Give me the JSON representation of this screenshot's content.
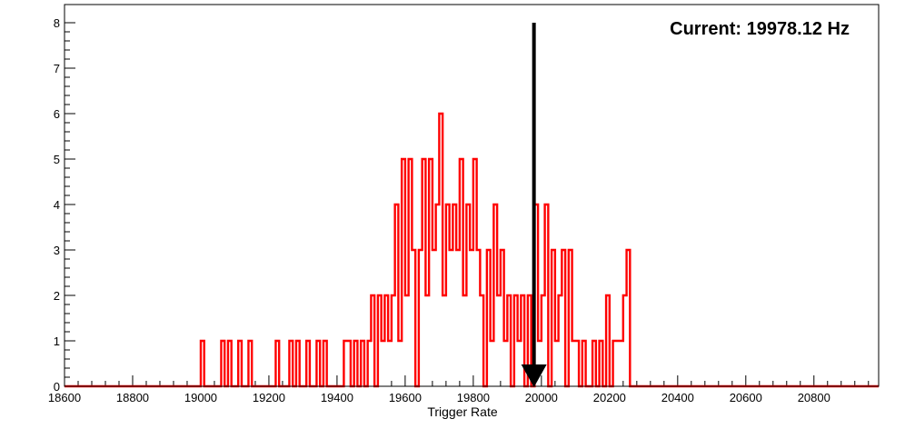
{
  "chart_data": {
    "type": "line",
    "title": "",
    "xlabel": "Trigger Rate",
    "ylabel": "",
    "xlim": [
      18600,
      20990
    ],
    "ylim": [
      0,
      8.4
    ],
    "grid": false,
    "x_ticks": [
      18600,
      18800,
      19000,
      19200,
      19400,
      19600,
      19800,
      20000,
      20200,
      20400,
      20600,
      20800
    ],
    "y_ticks": [
      0,
      1,
      2,
      3,
      4,
      5,
      6,
      7,
      8
    ],
    "series": [
      {
        "bin_width": 10,
        "color": "#ff0000",
        "points": [
          [
            18600,
            0
          ],
          [
            19000,
            1
          ],
          [
            19010,
            0
          ],
          [
            19060,
            1
          ],
          [
            19070,
            0
          ],
          [
            19080,
            1
          ],
          [
            19090,
            0
          ],
          [
            19110,
            1
          ],
          [
            19120,
            0
          ],
          [
            19140,
            1
          ],
          [
            19150,
            0
          ],
          [
            19220,
            1
          ],
          [
            19230,
            0
          ],
          [
            19260,
            1
          ],
          [
            19270,
            0
          ],
          [
            19280,
            1
          ],
          [
            19290,
            0
          ],
          [
            19310,
            1
          ],
          [
            19320,
            0
          ],
          [
            19340,
            1
          ],
          [
            19350,
            0
          ],
          [
            19360,
            1
          ],
          [
            19370,
            0
          ],
          [
            19420,
            1
          ],
          [
            19440,
            0
          ],
          [
            19450,
            1
          ],
          [
            19460,
            0
          ],
          [
            19470,
            1
          ],
          [
            19480,
            0
          ],
          [
            19490,
            1
          ],
          [
            19500,
            2
          ],
          [
            19510,
            0
          ],
          [
            19520,
            2
          ],
          [
            19530,
            1
          ],
          [
            19540,
            2
          ],
          [
            19550,
            1
          ],
          [
            19560,
            2
          ],
          [
            19570,
            4
          ],
          [
            19580,
            1
          ],
          [
            19590,
            5
          ],
          [
            19600,
            2
          ],
          [
            19610,
            5
          ],
          [
            19620,
            3
          ],
          [
            19630,
            0
          ],
          [
            19640,
            3
          ],
          [
            19650,
            5
          ],
          [
            19660,
            2
          ],
          [
            19670,
            5
          ],
          [
            19680,
            3
          ],
          [
            19690,
            4
          ],
          [
            19700,
            6
          ],
          [
            19710,
            2
          ],
          [
            19720,
            4
          ],
          [
            19730,
            3
          ],
          [
            19740,
            4
          ],
          [
            19750,
            3
          ],
          [
            19760,
            5
          ],
          [
            19770,
            2
          ],
          [
            19780,
            4
          ],
          [
            19790,
            3
          ],
          [
            19800,
            5
          ],
          [
            19810,
            3
          ],
          [
            19820,
            2
          ],
          [
            19830,
            0
          ],
          [
            19840,
            3
          ],
          [
            19850,
            1
          ],
          [
            19860,
            4
          ],
          [
            19870,
            2
          ],
          [
            19880,
            3
          ],
          [
            19890,
            1
          ],
          [
            19900,
            2
          ],
          [
            19910,
            0
          ],
          [
            19920,
            2
          ],
          [
            19930,
            1
          ],
          [
            19940,
            2
          ],
          [
            19950,
            0
          ],
          [
            19960,
            2
          ],
          [
            19970,
            0
          ],
          [
            19980,
            4
          ],
          [
            19990,
            1
          ],
          [
            20000,
            2
          ],
          [
            20010,
            4
          ],
          [
            20020,
            0
          ],
          [
            20030,
            3
          ],
          [
            20040,
            1
          ],
          [
            20050,
            2
          ],
          [
            20060,
            3
          ],
          [
            20070,
            0
          ],
          [
            20080,
            3
          ],
          [
            20090,
            1
          ],
          [
            20110,
            0
          ],
          [
            20120,
            1
          ],
          [
            20130,
            0
          ],
          [
            20150,
            1
          ],
          [
            20160,
            0
          ],
          [
            20170,
            1
          ],
          [
            20180,
            0
          ],
          [
            20190,
            2
          ],
          [
            20200,
            0
          ],
          [
            20210,
            1
          ],
          [
            20240,
            2
          ],
          [
            20250,
            3
          ],
          [
            20260,
            0
          ],
          [
            20990,
            0
          ]
        ]
      }
    ],
    "annotation": {
      "text": "Current: 19978.12 Hz",
      "arrow_x": 19978.12,
      "arrow_from_y": 8,
      "arrow_to_y": 0,
      "arrow_color": "#000000"
    }
  }
}
